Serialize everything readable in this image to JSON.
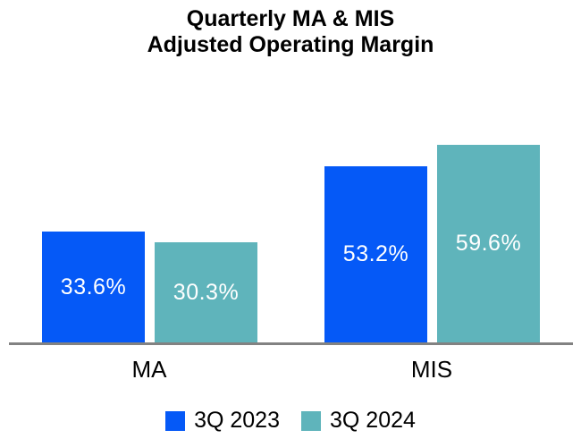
{
  "chart_data": {
    "type": "bar",
    "title": "Quarterly MA & MIS Adjusted Operating Margin",
    "title_lines": [
      "Quarterly MA & MIS",
      "Adjusted Operating Margin"
    ],
    "categories": [
      "MA",
      "MIS"
    ],
    "series": [
      {
        "name": "3Q 2023",
        "color": "#0559F7",
        "values": [
          33.6,
          53.2
        ],
        "data_labels": [
          "33.6%",
          "53.2%"
        ]
      },
      {
        "name": "3Q 2024",
        "color": "#5FB4BB",
        "values": [
          30.3,
          59.6
        ],
        "data_labels": [
          "30.3%",
          "59.6%"
        ]
      }
    ],
    "value_unit": "percent",
    "grid": false,
    "y_axis_visible": false,
    "legend_position": "bottom",
    "data_label_color": "#FFFFFF",
    "axis_line_color": "#828282",
    "title_color": "#000000",
    "background_color": "#FFFFFF"
  }
}
